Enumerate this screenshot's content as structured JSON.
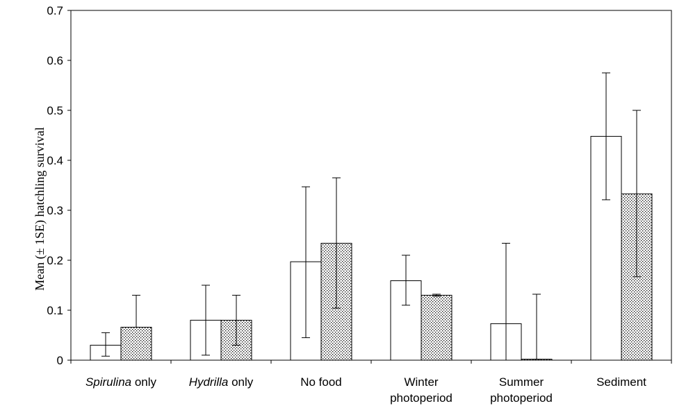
{
  "chart_data": {
    "type": "bar",
    "title": "",
    "xlabel": "",
    "ylabel": "Mean (± 1SE) hatchling survival",
    "ylim": [
      0,
      0.7
    ],
    "yticks": [
      0,
      0.1,
      0.2,
      0.3,
      0.4,
      0.5,
      0.6,
      0.7
    ],
    "ytick_labels": [
      "0",
      "0.1",
      "0.2",
      "0.3",
      "0.4",
      "0.5",
      "0.6",
      "0.7"
    ],
    "grid": false,
    "legend": null,
    "categories": [
      {
        "lines": [
          [
            {
              "text": "Spirulina",
              "italic": true
            },
            {
              "text": "  only",
              "italic": false
            }
          ]
        ]
      },
      {
        "lines": [
          [
            {
              "text": "Hydrilla",
              "italic": true
            },
            {
              "text": "  only",
              "italic": false
            }
          ]
        ]
      },
      {
        "lines": [
          [
            {
              "text": "No food",
              "italic": false
            }
          ]
        ]
      },
      {
        "lines": [
          [
            {
              "text": "Winter",
              "italic": false
            }
          ],
          [
            {
              "text": "photoperiod",
              "italic": false
            }
          ]
        ]
      },
      {
        "lines": [
          [
            {
              "text": "Summer",
              "italic": false
            }
          ],
          [
            {
              "text": "photoperiod",
              "italic": false
            }
          ]
        ]
      },
      {
        "lines": [
          [
            {
              "text": "Sediment",
              "italic": false
            }
          ]
        ]
      }
    ],
    "series": [
      {
        "fill": "#ffffff",
        "pattern": "none",
        "values": [
          0.03,
          0.08,
          0.197,
          0.159,
          0.073,
          0.448
        ],
        "err_low": [
          0.008,
          0.01,
          0.045,
          0.11,
          0.0,
          0.321
        ],
        "err_high": [
          0.055,
          0.15,
          0.347,
          0.21,
          0.234,
          0.575
        ]
      },
      {
        "fill": "#ffffff",
        "pattern": "stipple",
        "values": [
          0.066,
          0.08,
          0.234,
          0.13,
          0.002,
          0.333
        ],
        "err_low": [
          0.066,
          0.03,
          0.104,
          0.128,
          0.002,
          0.167
        ],
        "err_high": [
          0.13,
          0.13,
          0.365,
          0.132,
          0.132,
          0.5
        ]
      }
    ]
  }
}
